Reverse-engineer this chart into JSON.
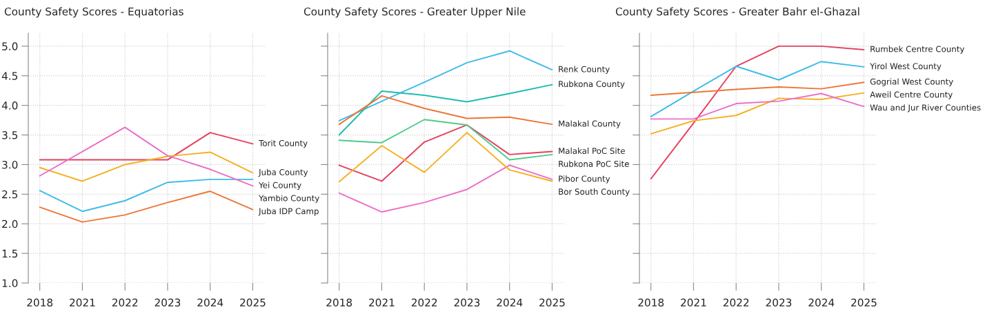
{
  "chart_data": [
    {
      "type": "line",
      "title": "County Safety Scores - Equatorias",
      "categories": [
        "2018",
        "2021",
        "2022",
        "2023",
        "2024",
        "2025"
      ],
      "ylim": [
        1.0,
        5.22
      ],
      "yticks": [
        {
          "value": 1.0,
          "label": "1.0"
        },
        {
          "value": 1.5,
          "label": "1.5"
        },
        {
          "value": 2.0,
          "label": "2.0"
        },
        {
          "value": 2.5,
          "label": "2.5"
        },
        {
          "value": 3.0,
          "label": "3.0"
        },
        {
          "value": 3.5,
          "label": "3.5"
        },
        {
          "value": 4.0,
          "label": "4.0"
        },
        {
          "value": 4.5,
          "label": "4.5"
        },
        {
          "value": 5.0,
          "label": "5.0"
        }
      ],
      "grid": true,
      "legend": false,
      "series": [
        {
          "name": "Torit County",
          "color": "#e5405e",
          "values": [
            3.08,
            3.08,
            3.08,
            3.08,
            3.54,
            3.35
          ]
        },
        {
          "name": "Juba County",
          "color": "#f4b021",
          "values": [
            2.95,
            2.72,
            3.0,
            3.14,
            3.21,
            2.86
          ]
        },
        {
          "name": "Yei County",
          "color": "#3fbbe9",
          "values": [
            2.56,
            2.21,
            2.39,
            2.7,
            2.75,
            2.75
          ]
        },
        {
          "name": "Yambio County",
          "color": "#ec6fc7",
          "values": [
            2.81,
            3.22,
            3.63,
            3.15,
            2.92,
            2.64
          ]
        },
        {
          "name": "Juba IDP Camp",
          "color": "#ec7636",
          "values": [
            2.28,
            2.03,
            2.15,
            2.36,
            2.55,
            2.24
          ]
        }
      ]
    },
    {
      "type": "line",
      "title": "County Safety Scores - Greater Upper Nile",
      "categories": [
        "2018",
        "2021",
        "2022",
        "2023",
        "2024",
        "2025"
      ],
      "ylim": [
        1.0,
        5.22
      ],
      "yticks": [
        {
          "value": 1.0,
          "label": null
        },
        {
          "value": 1.5,
          "label": null
        },
        {
          "value": 2.0,
          "label": null
        },
        {
          "value": 2.5,
          "label": null
        },
        {
          "value": 3.0,
          "label": null
        },
        {
          "value": 3.5,
          "label": null
        },
        {
          "value": 4.0,
          "label": null
        },
        {
          "value": 4.5,
          "label": null
        },
        {
          "value": 5.0,
          "label": null
        }
      ],
      "tick_labels": "x",
      "grid": true,
      "legend": false,
      "series": [
        {
          "name": "Renk County",
          "color": "#3fbbe9",
          "values": [
            3.74,
            4.07,
            4.39,
            4.72,
            4.92,
            4.6
          ]
        },
        {
          "name": "Rubkona County",
          "color": "#1dbcae",
          "values": [
            3.5,
            4.24,
            4.17,
            4.06,
            4.2,
            4.35
          ]
        },
        {
          "name": "Malakal County",
          "color": "#ec7636",
          "values": [
            3.68,
            4.16,
            3.95,
            3.78,
            3.8,
            3.68
          ]
        },
        {
          "name": "Malakal PoC Site",
          "color": "#e5405e",
          "values": [
            2.99,
            2.72,
            3.38,
            3.67,
            3.17,
            3.22
          ]
        },
        {
          "name": "Rubkona PoC Site",
          "color": "#4ecb8b",
          "values": [
            3.41,
            3.37,
            3.76,
            3.67,
            3.08,
            3.17
          ]
        },
        {
          "name": "Pibor County",
          "color": "#ec6fc7",
          "values": [
            2.52,
            2.2,
            2.36,
            2.58,
            2.99,
            2.75
          ]
        },
        {
          "name": "Bor South County",
          "color": "#f4b021",
          "values": [
            2.71,
            3.32,
            2.87,
            3.54,
            2.91,
            2.72
          ]
        }
      ]
    },
    {
      "type": "line",
      "title": "County Safety Scores - Greater Bahr el-Ghazal",
      "categories": [
        "2018",
        "2021",
        "2022",
        "2023",
        "2024",
        "2025"
      ],
      "ylim": [
        1.0,
        5.22
      ],
      "yticks": [
        {
          "value": 1.0,
          "label": null
        },
        {
          "value": 1.5,
          "label": null
        },
        {
          "value": 2.0,
          "label": null
        },
        {
          "value": 2.5,
          "label": null
        },
        {
          "value": 3.0,
          "label": null
        },
        {
          "value": 3.5,
          "label": null
        },
        {
          "value": 4.0,
          "label": null
        },
        {
          "value": 4.5,
          "label": null
        },
        {
          "value": 5.0,
          "label": null
        }
      ],
      "tick_labels": "x",
      "grid": true,
      "legend": false,
      "series": [
        {
          "name": "Rumbek Centre County",
          "color": "#e5405e",
          "values": [
            2.76,
            3.7,
            4.66,
            5.0,
            5.0,
            4.94
          ]
        },
        {
          "name": "Yirol West County",
          "color": "#3fbbe9",
          "values": [
            3.81,
            4.24,
            4.66,
            4.43,
            4.74,
            4.65
          ]
        },
        {
          "name": "Gogrial West County",
          "color": "#ec7636",
          "values": [
            4.17,
            4.22,
            4.27,
            4.31,
            4.28,
            4.39
          ]
        },
        {
          "name": "Aweil Centre County",
          "color": "#f4b021",
          "values": [
            3.52,
            3.74,
            3.83,
            4.12,
            4.1,
            4.21
          ]
        },
        {
          "name": "Wau and Jur River Counties",
          "color": "#ec6fc7",
          "values": [
            3.77,
            3.77,
            4.03,
            4.07,
            4.2,
            3.98
          ]
        }
      ]
    }
  ]
}
